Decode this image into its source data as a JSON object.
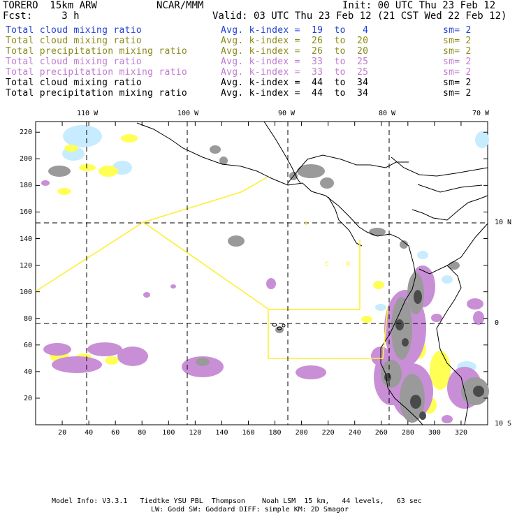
{
  "header": {
    "model": "TORERO  15km ARW",
    "org": "NCAR/MMM",
    "init": "Init: 00 UTC Thu 23 Feb 12",
    "fcst": "Fcst:     3 h",
    "valid": "Valid: 03 UTC Thu 23 Feb 12 (21 CST Wed 22 Feb 12)"
  },
  "legend": [
    {
      "field": "Total cloud mixing ratio",
      "kindex": "Avg. k-index =  19  to   4",
      "sm": "sm= 2",
      "color": "#1f3fd6"
    },
    {
      "field": "Total cloud mixing ratio",
      "kindex": "Avg. k-index =  26  to  20",
      "sm": "sm= 2",
      "color": "#8a8a1a"
    },
    {
      "field": "Total precipitation mixing ratio",
      "kindex": "Avg. k-index =  26  to  20",
      "sm": "sm= 2",
      "color": "#8a8a1a"
    },
    {
      "field": "Total cloud mixing ratio",
      "kindex": "Avg. k-index =  33  to  25",
      "sm": "sm= 2",
      "color": "#c07ad0"
    },
    {
      "field": "Total precipitation mixing ratio",
      "kindex": "Avg. k-index =  33  to  25",
      "sm": "sm= 2",
      "color": "#c07ad0"
    },
    {
      "field": "Total cloud mixing ratio",
      "kindex": "Avg. k-index =  44  to  34",
      "sm": "sm= 2",
      "color": "#000000"
    },
    {
      "field": "Total precipitation mixing ratio",
      "kindex": "Avg. k-index =  44  to  34",
      "sm": "sm= 2",
      "color": "#000000"
    }
  ],
  "map": {
    "lon_labels": [
      "110 W",
      "100 W",
      "90 W",
      "80 W",
      "70 W"
    ],
    "lat_labels": [
      "10 N",
      "0",
      "10 S"
    ],
    "x_ticks": [
      "20",
      "40",
      "60",
      "80",
      "100",
      "120",
      "140",
      "160",
      "180",
      "200",
      "220",
      "240",
      "260",
      "280",
      "300",
      "320"
    ],
    "y_ticks": [
      "20",
      "40",
      "60",
      "80",
      "100",
      "120",
      "140",
      "160",
      "180",
      "200",
      "220"
    ],
    "region_labels": [
      "C",
      "R"
    ],
    "colors": {
      "coastline": "#000000",
      "boundary": "#ffee33",
      "cloud_light": "#c8ecff",
      "yellow": "#ffff55",
      "purple": "#c98fd6",
      "gray": "#9a9a9a",
      "gray_dark": "#4a4a4a"
    }
  },
  "footer": {
    "line1": "Model Info: V3.3.1   Tiedtke YSU PBL  Thompson    Noah LSM  15 km,   44 levels,   63 sec",
    "line2": "LW: Godd SW: Goddard DIFF: simple KM: 2D Smagor"
  }
}
